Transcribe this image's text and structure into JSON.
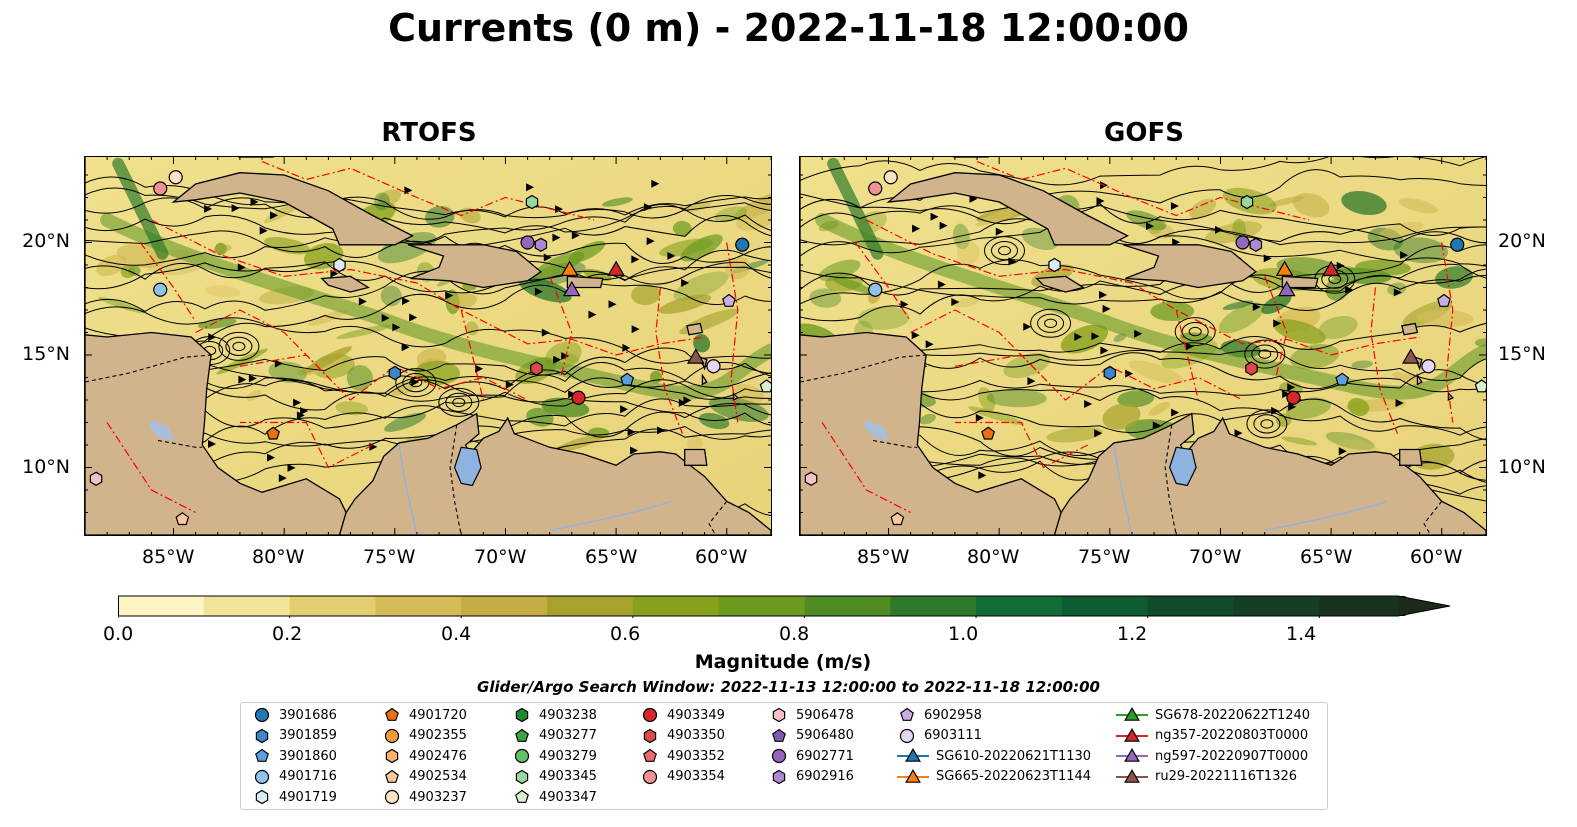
{
  "title": "Currents (0 m) - 2022-11-18 12:00:00",
  "panels": [
    {
      "name": "rtofs",
      "title": "RTOFS"
    },
    {
      "name": "gofs",
      "title": "GOFS"
    }
  ],
  "axes": {
    "lat_labels": [
      "20°N",
      "15°N",
      "10°N"
    ],
    "lon_labels": [
      "85°W",
      "80°W",
      "75°W",
      "70°W",
      "65°W",
      "60°W"
    ]
  },
  "colorbar": {
    "label": "Magnitude (m/s)",
    "ticks": [
      "0.0",
      "0.2",
      "0.4",
      "0.6",
      "0.8",
      "1.0",
      "1.2",
      "1.4"
    ],
    "colors": [
      "#fdf6c3",
      "#f2e49b",
      "#e3cf72",
      "#d5bc58",
      "#c4ae44",
      "#a7a22e",
      "#87a11c",
      "#6b9a1f",
      "#4f8d24",
      "#2f7a2a",
      "#136c36",
      "#0d5c32",
      "#104b2a",
      "#163d25",
      "#1a3220",
      "#1c2a1a"
    ]
  },
  "search_window": "Glider/Argo Search Window: 2022-11-13 12:00:00 to 2022-11-18 12:00:00",
  "legend": {
    "columns": [
      [
        {
          "label": "3901686",
          "shape": "circle",
          "color": "#1f77b4"
        },
        {
          "label": "3901859",
          "shape": "hexagon",
          "color": "#3a86c8"
        },
        {
          "label": "3901860",
          "shape": "pentagon",
          "color": "#5aa0dc"
        },
        {
          "label": "4901716",
          "shape": "circle",
          "color": "#8fc3ec"
        },
        {
          "label": "4901719",
          "shape": "hexagon",
          "color": "#d9ecfa"
        }
      ],
      [
        {
          "label": "4901720",
          "shape": "pentagon",
          "color": "#e8700f"
        },
        {
          "label": "4902355",
          "shape": "circle",
          "color": "#f59a3a"
        },
        {
          "label": "4902476",
          "shape": "hexagon",
          "color": "#f8b26a"
        },
        {
          "label": "4902534",
          "shape": "pentagon",
          "color": "#fbc999"
        },
        {
          "label": "4903237",
          "shape": "circle",
          "color": "#fde3c6"
        }
      ],
      [
        {
          "label": "4903238",
          "shape": "hexagon",
          "color": "#1f8a2a"
        },
        {
          "label": "4903277",
          "shape": "pentagon",
          "color": "#3aa63f"
        },
        {
          "label": "4903279",
          "shape": "circle",
          "color": "#62c266"
        },
        {
          "label": "4903345",
          "shape": "hexagon",
          "color": "#98d99b"
        },
        {
          "label": "4903347",
          "shape": "pentagon",
          "color": "#d6f2d0"
        }
      ],
      [
        {
          "label": "4903349",
          "shape": "circle",
          "color": "#d62728"
        },
        {
          "label": "4903350",
          "shape": "hexagon",
          "color": "#e0474a"
        },
        {
          "label": "4903352",
          "shape": "pentagon",
          "color": "#ea6b6f"
        },
        {
          "label": "4903354",
          "shape": "circle",
          "color": "#f29193"
        }
      ],
      [
        {
          "label": "5906478",
          "shape": "hexagon",
          "color": "#f8c0c8"
        },
        {
          "label": "5906480",
          "shape": "pentagon",
          "color": "#7f5bb0"
        },
        {
          "label": "6902771",
          "shape": "circle",
          "color": "#9467bd"
        },
        {
          "label": "6902916",
          "shape": "hexagon",
          "color": "#ad8ad0"
        }
      ],
      [
        {
          "label": "6902958",
          "shape": "pentagon",
          "color": "#c9aee6"
        },
        {
          "label": "6903111",
          "shape": "circle",
          "color": "#e6d6f6"
        },
        {
          "label": "SG610-20220621T1130",
          "shape": "triangle-line",
          "color": "#1f77b4"
        },
        {
          "label": "SG665-20220623T1144",
          "shape": "triangle-line",
          "color": "#ff7f0e"
        }
      ],
      [
        {
          "label": "SG678-20220622T1240",
          "shape": "triangle-line",
          "color": "#2ca02c"
        },
        {
          "label": "ng357-20220803T0000",
          "shape": "triangle-line",
          "color": "#d62728"
        },
        {
          "label": "ng597-20220907T0000",
          "shape": "triangle-line",
          "color": "#9467bd"
        },
        {
          "label": "ru29-20221116T1326",
          "shape": "triangle-line",
          "color": "#8c564b"
        }
      ]
    ]
  },
  "map_markers": [
    {
      "id": "3901686",
      "lon": -59.3,
      "lat": 19.9,
      "shape": "circle",
      "color": "#1f77b4"
    },
    {
      "id": "3901859",
      "lon": -75.0,
      "lat": 14.2,
      "shape": "hexagon",
      "color": "#3a86c8"
    },
    {
      "id": "3901860",
      "lon": -64.5,
      "lat": 13.9,
      "shape": "pentagon",
      "color": "#5aa0dc"
    },
    {
      "id": "4901716",
      "lon": -85.6,
      "lat": 17.9,
      "shape": "circle",
      "color": "#8fc3ec"
    },
    {
      "id": "4901719",
      "lon": -77.5,
      "lat": 19.0,
      "shape": "hexagon",
      "color": "#d9ecfa"
    },
    {
      "id": "4901720",
      "lon": -80.5,
      "lat": 11.5,
      "shape": "pentagon",
      "color": "#e8700f"
    },
    {
      "id": "4902534",
      "lon": -84.6,
      "lat": 7.7,
      "shape": "pentagon",
      "color": "#fbc999"
    },
    {
      "id": "4903237",
      "lon": -84.9,
      "lat": 22.9,
      "shape": "circle",
      "color": "#fde3c6"
    },
    {
      "id": "4903345",
      "lon": -68.8,
      "lat": 21.8,
      "shape": "hexagon",
      "color": "#98d99b"
    },
    {
      "id": "4903347",
      "lon": -58.2,
      "lat": 13.6,
      "shape": "pentagon",
      "color": "#d6f2d0"
    },
    {
      "id": "4903349",
      "lon": -66.7,
      "lat": 13.1,
      "shape": "circle",
      "color": "#d62728"
    },
    {
      "id": "4903350",
      "lon": -68.6,
      "lat": 14.4,
      "shape": "hexagon",
      "color": "#e0474a"
    },
    {
      "id": "4903354",
      "lon": -85.6,
      "lat": 22.4,
      "shape": "circle",
      "color": "#f29193"
    },
    {
      "id": "5906478",
      "lon": -88.5,
      "lat": 9.5,
      "shape": "hexagon",
      "color": "#f8c0c8"
    },
    {
      "id": "6902771",
      "lon": -69.0,
      "lat": 20.0,
      "shape": "circle",
      "color": "#9467bd"
    },
    {
      "id": "6902916",
      "lon": -68.4,
      "lat": 19.9,
      "shape": "hexagon",
      "color": "#ad8ad0"
    },
    {
      "id": "6902958",
      "lon": -59.9,
      "lat": 17.4,
      "shape": "pentagon",
      "color": "#c9aee6"
    },
    {
      "id": "6903111",
      "lon": -60.6,
      "lat": 14.5,
      "shape": "circle",
      "color": "#e6d6f6"
    },
    {
      "id": "SG665-20220623T1144",
      "lon": -67.1,
      "lat": 18.8,
      "shape": "triangle",
      "color": "#ff7f0e"
    },
    {
      "id": "ng357-20220803T0000",
      "lon": -65.0,
      "lat": 18.8,
      "shape": "triangle",
      "color": "#d62728"
    },
    {
      "id": "ng597-20220907T0000",
      "lon": -67.0,
      "lat": 17.9,
      "shape": "triangle",
      "color": "#9467bd"
    },
    {
      "id": "ru29-20221116T1326",
      "lon": -61.4,
      "lat": 14.9,
      "shape": "triangle",
      "color": "#8c564b"
    }
  ]
}
